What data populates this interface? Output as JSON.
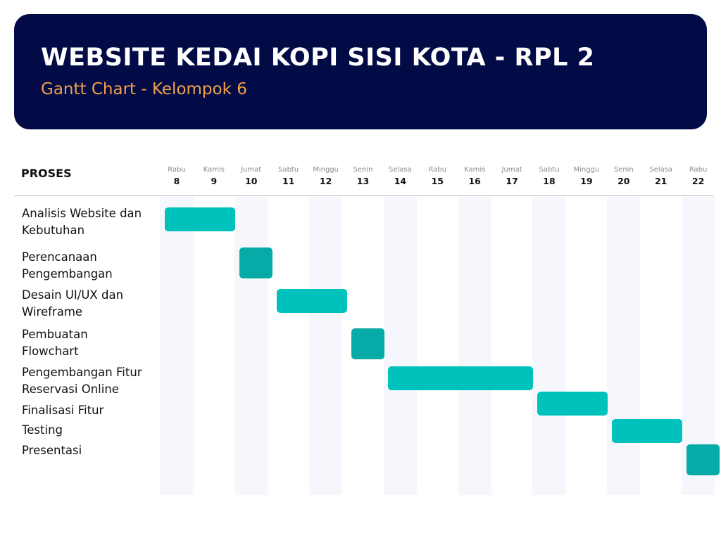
{
  "header": {
    "title": "WEBSITE KEDAI KOPI SISI KOTA - RPL 2",
    "subtitle": "Gantt Chart - Kelompok 6"
  },
  "colors": {
    "header_bg": "#020b45",
    "subtitle": "#f0a04b",
    "bar_light": "#00c2bd",
    "bar_dark": "#06aaa6",
    "stripe": "#f6f7fc"
  },
  "chart_data": {
    "type": "gantt",
    "row_header": "PROSES",
    "days": [
      {
        "name": "Rabu",
        "date": "8"
      },
      {
        "name": "Kamis",
        "date": "9"
      },
      {
        "name": "Jumat",
        "date": "10"
      },
      {
        "name": "Sabtu",
        "date": "11"
      },
      {
        "name": "Minggu",
        "date": "12"
      },
      {
        "name": "Senin",
        "date": "13"
      },
      {
        "name": "Selasa",
        "date": "14"
      },
      {
        "name": "Rabu",
        "date": "15"
      },
      {
        "name": "Kamis",
        "date": "16"
      },
      {
        "name": "Jumat",
        "date": "17"
      },
      {
        "name": "Sabtu",
        "date": "18"
      },
      {
        "name": "Minggu",
        "date": "19"
      },
      {
        "name": "Senin",
        "date": "20"
      },
      {
        "name": "Selasa",
        "date": "21"
      },
      {
        "name": "Rabu",
        "date": "22"
      }
    ],
    "tasks": [
      {
        "label": [
          "Analisis Website dan",
          "Kebutuhan"
        ],
        "start": "8",
        "end": "9",
        "color": "#00c2bd"
      },
      {
        "label": [
          "Perencanaan",
          "Pengembangan"
        ],
        "start": "10",
        "end": "10",
        "color": "#06aaa6"
      },
      {
        "label": [
          "Desain UI/UX dan",
          "Wireframe"
        ],
        "start": "11",
        "end": "12",
        "color": "#00c2bd"
      },
      {
        "label": [
          "Pembuatan",
          "Flowchart"
        ],
        "start": "13",
        "end": "13",
        "color": "#06aaa6"
      },
      {
        "label": [
          "Pengembangan Fitur",
          "Reservasi Online"
        ],
        "start": "14",
        "end": "17",
        "color": "#00c2bd"
      },
      {
        "label": [
          "Finalisasi Fitur"
        ],
        "start": "18",
        "end": "19",
        "color": "#00c2bd"
      },
      {
        "label": [
          "Testing"
        ],
        "start": "20",
        "end": "21",
        "color": "#00c2bd"
      },
      {
        "label": [
          "Presentasi"
        ],
        "start": "22",
        "end": "22",
        "color": "#06aaa6"
      }
    ]
  }
}
